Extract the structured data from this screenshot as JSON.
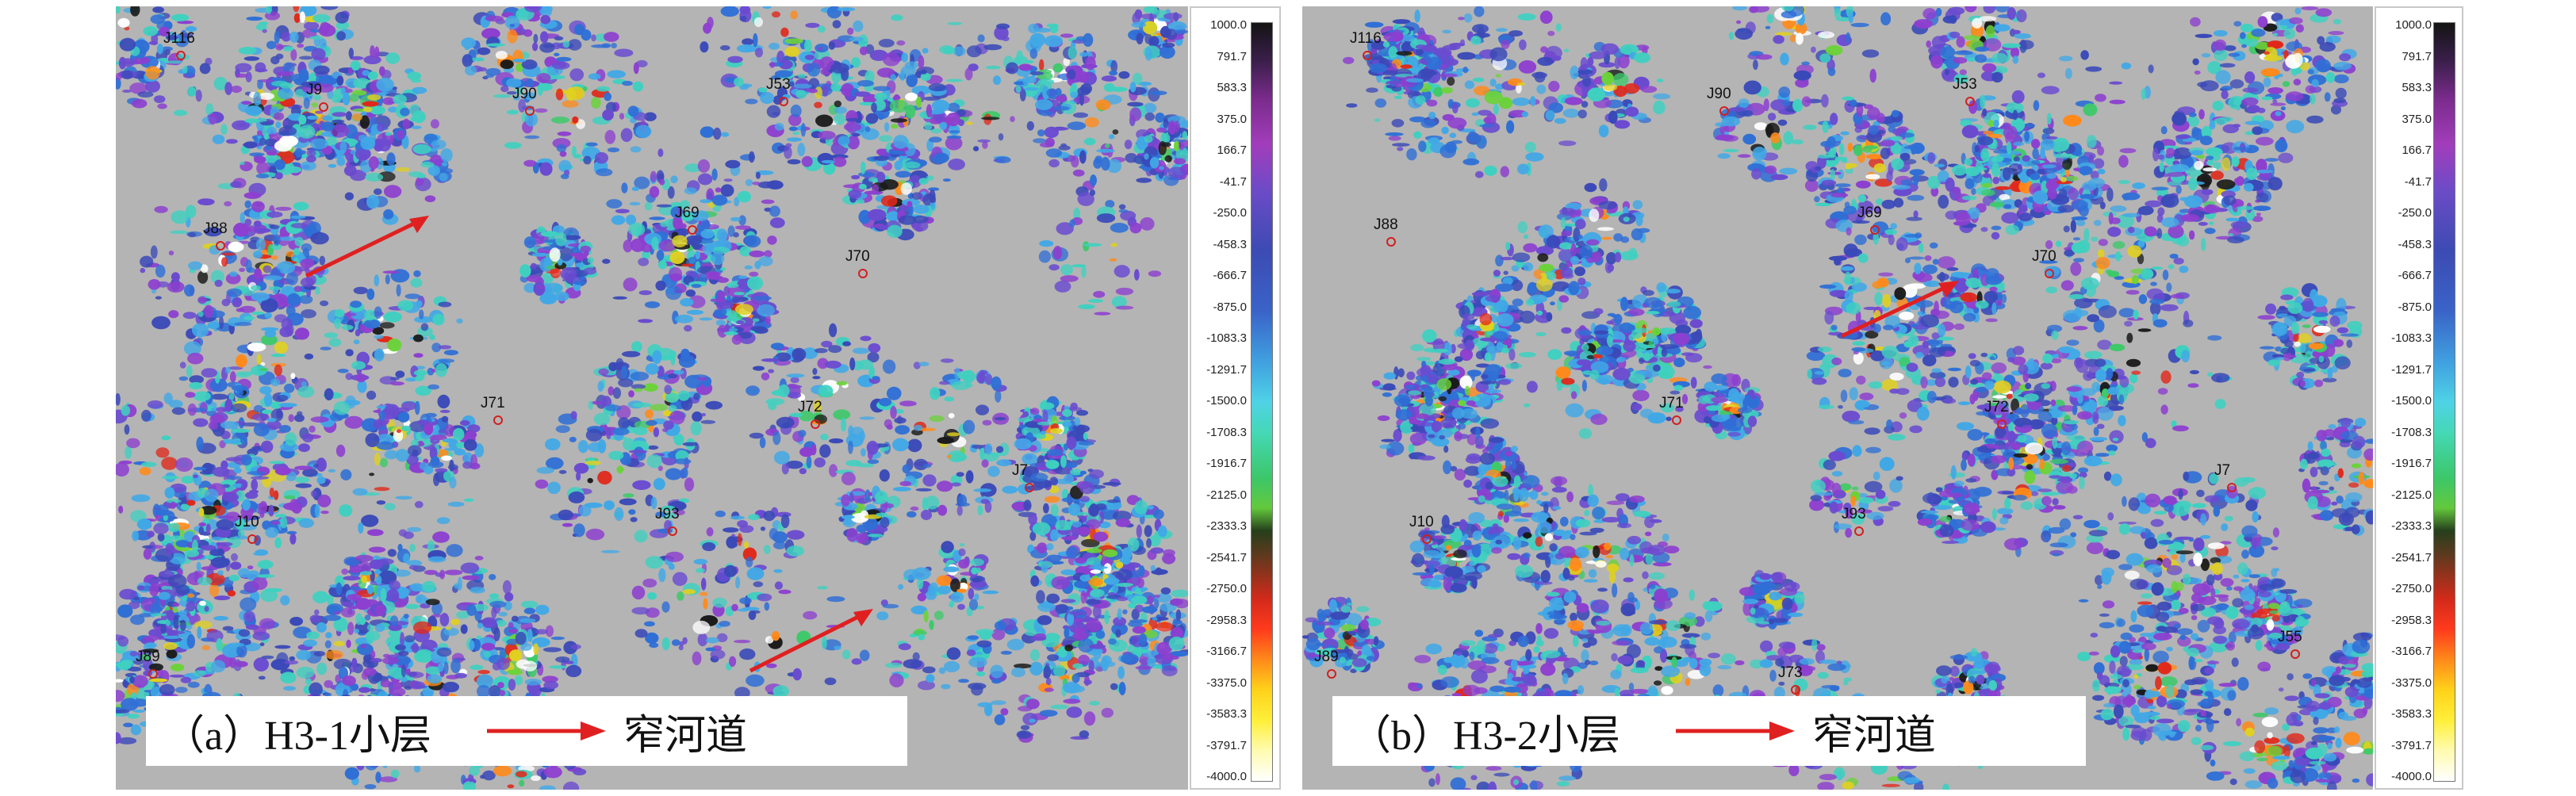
{
  "panels": [
    {
      "id": "a",
      "caption_label": "（a）H3-1小层",
      "caption_legend": "窄河道",
      "wells": [
        "J116",
        "J9",
        "J90",
        "J53",
        "J88",
        "J69",
        "J70",
        "J71",
        "J72",
        "J10",
        "J93",
        "J89",
        "J7"
      ],
      "seed": 7
    },
    {
      "id": "b",
      "caption_label": "（b）H3-2小层",
      "caption_legend": "窄河道",
      "wells": [
        "J116",
        "J90",
        "J53",
        "J88",
        "J69",
        "J70",
        "J71",
        "J72",
        "J10",
        "J93",
        "J89",
        "J73",
        "J55",
        "J7"
      ],
      "seed": 13
    }
  ],
  "colorbar": {
    "ticks": [
      "1000.0",
      "791.7",
      "583.3",
      "375.0",
      "166.7",
      "-41.7",
      "-250.0",
      "-458.3",
      "-666.7",
      "-875.0",
      "-1083.3",
      "-1291.7",
      "-1500.0",
      "-1708.3",
      "-1916.7",
      "-2125.0",
      "-2333.3",
      "-2541.7",
      "-2750.0",
      "-2958.3",
      "-3166.7",
      "-3375.0",
      "-3583.3",
      "-3791.7",
      "-4000.0"
    ]
  },
  "colors": {
    "background_gray": "#b4b4b4",
    "arrow_red": "#e02020",
    "well_red": "#d02020"
  }
}
